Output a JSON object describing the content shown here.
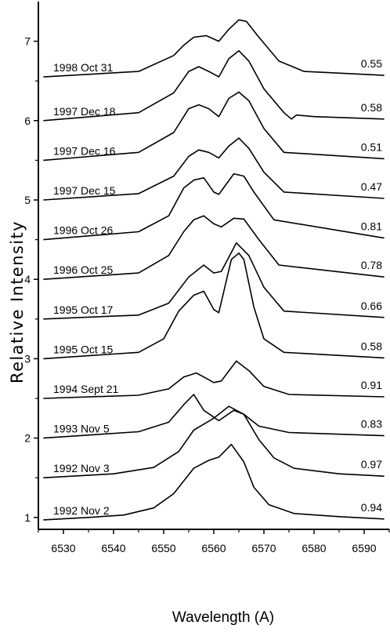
{
  "chart_data": {
    "type": "line",
    "title": "",
    "xlabel": "Wavelength (A)",
    "ylabel": "Relative Intensity",
    "xlim": [
      6525,
      6595
    ],
    "ylim": [
      0.85,
      7.5
    ],
    "xticks": [
      6530,
      6540,
      6550,
      6560,
      6570,
      6580,
      6590
    ],
    "yticks": [
      1,
      2,
      3,
      4,
      5,
      6,
      7
    ],
    "grid": false,
    "legend": "none",
    "line_color": "#000000",
    "series": [
      {
        "date_label": "1992 Nov 2",
        "ratio_label": "0.94",
        "points": [
          [
            6526,
            0.97
          ],
          [
            6535,
            1.0
          ],
          [
            6542,
            1.03
          ],
          [
            6548,
            1.12
          ],
          [
            6552,
            1.3
          ],
          [
            6556,
            1.62
          ],
          [
            6559,
            1.72
          ],
          [
            6561,
            1.76
          ],
          [
            6563.5,
            1.92
          ],
          [
            6566,
            1.7
          ],
          [
            6568,
            1.38
          ],
          [
            6571,
            1.16
          ],
          [
            6576,
            1.05
          ],
          [
            6585,
            1.01
          ],
          [
            6594,
            0.98
          ]
        ]
      },
      {
        "date_label": "1992 Nov 3",
        "ratio_label": "0.97",
        "points": [
          [
            6526,
            1.5
          ],
          [
            6540,
            1.55
          ],
          [
            6548,
            1.63
          ],
          [
            6553,
            1.83
          ],
          [
            6556,
            2.1
          ],
          [
            6560,
            2.25
          ],
          [
            6563,
            2.4
          ],
          [
            6566,
            2.3
          ],
          [
            6569,
            1.98
          ],
          [
            6572,
            1.75
          ],
          [
            6576,
            1.62
          ],
          [
            6585,
            1.55
          ],
          [
            6594,
            1.52
          ]
        ]
      },
      {
        "date_label": "1993 Nov 5",
        "ratio_label": "0.83",
        "points": [
          [
            6526,
            2.0
          ],
          [
            6545,
            2.08
          ],
          [
            6551,
            2.2
          ],
          [
            6554,
            2.42
          ],
          [
            6556,
            2.55
          ],
          [
            6558,
            2.35
          ],
          [
            6561,
            2.22
          ],
          [
            6564,
            2.35
          ],
          [
            6566,
            2.3
          ],
          [
            6569,
            2.15
          ],
          [
            6575,
            2.07
          ],
          [
            6594,
            2.03
          ]
        ]
      },
      {
        "date_label": "1994 Sept 21",
        "ratio_label": "0.91",
        "points": [
          [
            6526,
            2.5
          ],
          [
            6545,
            2.54
          ],
          [
            6551,
            2.62
          ],
          [
            6554,
            2.77
          ],
          [
            6556.5,
            2.82
          ],
          [
            6558,
            2.77
          ],
          [
            6560,
            2.7
          ],
          [
            6561.5,
            2.72
          ],
          [
            6564.5,
            2.97
          ],
          [
            6567,
            2.85
          ],
          [
            6570,
            2.65
          ],
          [
            6575,
            2.55
          ],
          [
            6594,
            2.52
          ]
        ]
      },
      {
        "date_label": "1995 Oct 15",
        "ratio_label": "0.58",
        "points": [
          [
            6526,
            3.0
          ],
          [
            6545,
            3.08
          ],
          [
            6550,
            3.25
          ],
          [
            6553,
            3.6
          ],
          [
            6556,
            3.8
          ],
          [
            6558,
            3.85
          ],
          [
            6560,
            3.62
          ],
          [
            6561,
            3.58
          ],
          [
            6563.5,
            4.25
          ],
          [
            6565,
            4.33
          ],
          [
            6566,
            4.25
          ],
          [
            6568,
            3.65
          ],
          [
            6570,
            3.25
          ],
          [
            6574,
            3.08
          ],
          [
            6594,
            3.01
          ]
        ]
      },
      {
        "date_label": "1995 Oct 17",
        "ratio_label": "0.66",
        "points": [
          [
            6526,
            3.5
          ],
          [
            6545,
            3.55
          ],
          [
            6551,
            3.7
          ],
          [
            6555,
            4.03
          ],
          [
            6558,
            4.18
          ],
          [
            6560,
            4.08
          ],
          [
            6561.5,
            4.1
          ],
          [
            6564.5,
            4.46
          ],
          [
            6567,
            4.3
          ],
          [
            6570,
            3.9
          ],
          [
            6574,
            3.6
          ],
          [
            6594,
            3.52
          ]
        ]
      },
      {
        "date_label": "1996 Oct 25",
        "ratio_label": "0.78",
        "points": [
          [
            6526,
            4.0
          ],
          [
            6545,
            4.08
          ],
          [
            6551,
            4.3
          ],
          [
            6554,
            4.6
          ],
          [
            6556,
            4.75
          ],
          [
            6558,
            4.8
          ],
          [
            6560,
            4.7
          ],
          [
            6561.5,
            4.66
          ],
          [
            6564,
            4.77
          ],
          [
            6566,
            4.76
          ],
          [
            6569,
            4.5
          ],
          [
            6573,
            4.18
          ],
          [
            6594,
            4.03
          ]
        ]
      },
      {
        "date_label": "1996 Oct 26",
        "ratio_label": "0.81",
        "points": [
          [
            6526,
            4.5
          ],
          [
            6545,
            4.6
          ],
          [
            6551,
            4.8
          ],
          [
            6554,
            5.15
          ],
          [
            6556,
            5.25
          ],
          [
            6558,
            5.28
          ],
          [
            6560,
            5.1
          ],
          [
            6561,
            5.07
          ],
          [
            6564,
            5.33
          ],
          [
            6566,
            5.3
          ],
          [
            6568,
            5.1
          ],
          [
            6572,
            4.75
          ],
          [
            6594,
            4.52
          ]
        ]
      },
      {
        "date_label": "1997 Dec 15",
        "ratio_label": "0.47",
        "points": [
          [
            6526,
            5.0
          ],
          [
            6545,
            5.08
          ],
          [
            6552,
            5.3
          ],
          [
            6555,
            5.55
          ],
          [
            6557,
            5.63
          ],
          [
            6559,
            5.6
          ],
          [
            6561,
            5.53
          ],
          [
            6563,
            5.68
          ],
          [
            6565,
            5.78
          ],
          [
            6567,
            5.65
          ],
          [
            6570,
            5.35
          ],
          [
            6574,
            5.1
          ],
          [
            6594,
            5.02
          ]
        ]
      },
      {
        "date_label": "1997 Dec 16",
        "ratio_label": "0.51",
        "points": [
          [
            6526,
            5.5
          ],
          [
            6545,
            5.6
          ],
          [
            6552,
            5.85
          ],
          [
            6555,
            6.15
          ],
          [
            6557,
            6.2
          ],
          [
            6559,
            6.15
          ],
          [
            6561,
            6.05
          ],
          [
            6563,
            6.28
          ],
          [
            6565,
            6.36
          ],
          [
            6567,
            6.25
          ],
          [
            6570,
            5.9
          ],
          [
            6574,
            5.6
          ],
          [
            6594,
            5.52
          ]
        ]
      },
      {
        "date_label": "1997 Dec 18",
        "ratio_label": "0.58",
        "points": [
          [
            6526,
            6.0
          ],
          [
            6545,
            6.1
          ],
          [
            6552,
            6.35
          ],
          [
            6555,
            6.62
          ],
          [
            6557,
            6.68
          ],
          [
            6559,
            6.62
          ],
          [
            6561,
            6.55
          ],
          [
            6563,
            6.78
          ],
          [
            6565,
            6.88
          ],
          [
            6567,
            6.75
          ],
          [
            6570,
            6.4
          ],
          [
            6574,
            6.1
          ],
          [
            6575.5,
            6.02
          ],
          [
            6576.5,
            6.07
          ],
          [
            6580,
            6.05
          ],
          [
            6594,
            6.02
          ]
        ]
      },
      {
        "date_label": "1998 Oct 31",
        "ratio_label": "0.55",
        "points": [
          [
            6526,
            6.55
          ],
          [
            6545,
            6.62
          ],
          [
            6552,
            6.82
          ],
          [
            6554,
            6.95
          ],
          [
            6556,
            7.05
          ],
          [
            6558.5,
            7.07
          ],
          [
            6561,
            7.0
          ],
          [
            6563,
            7.15
          ],
          [
            6565,
            7.27
          ],
          [
            6566.5,
            7.25
          ],
          [
            6569,
            7.05
          ],
          [
            6573,
            6.75
          ],
          [
            6578,
            6.62
          ],
          [
            6594,
            6.57
          ]
        ]
      }
    ]
  }
}
